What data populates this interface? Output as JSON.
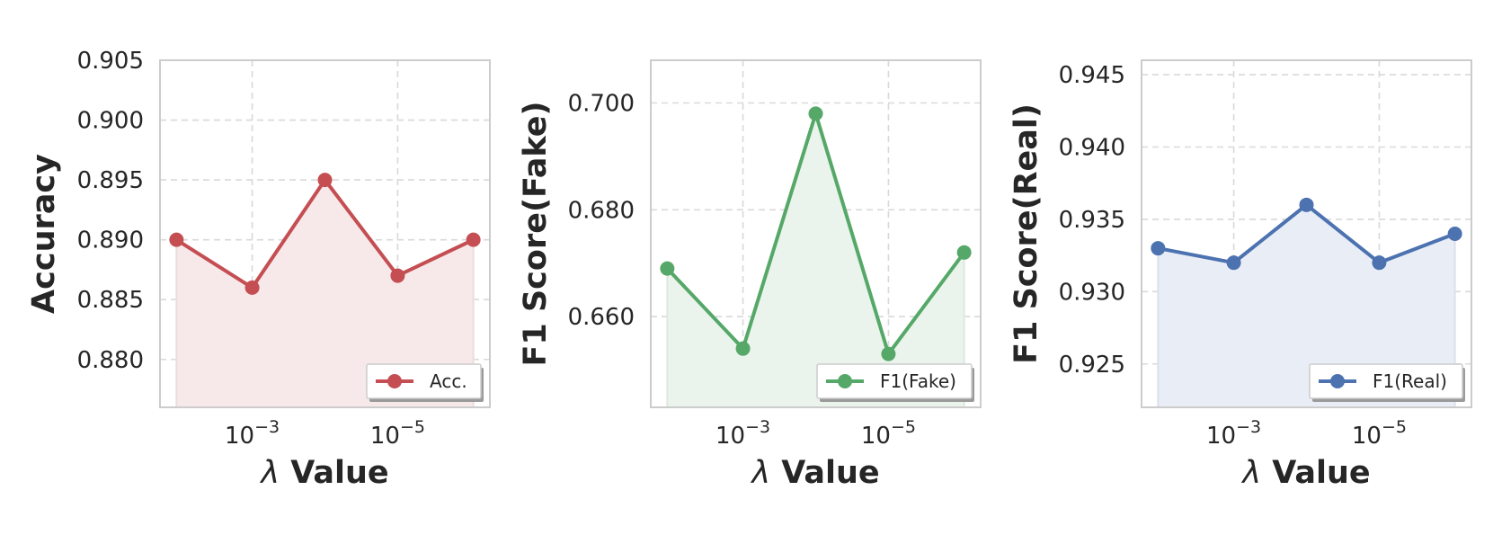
{
  "chart_data": [
    {
      "type": "line",
      "x": [
        "10^-2",
        "10^-3",
        "10^-4",
        "10^-5",
        "10^-6"
      ],
      "xticks": [
        {
          "x": "10^-3",
          "base": "10",
          "exp": "−3"
        },
        {
          "x": "10^-5",
          "base": "10",
          "exp": "−5"
        }
      ],
      "xlabel_symbol": "λ",
      "xlabel_text": "Value",
      "ylabel": "Accuracy",
      "ylim": [
        0.876,
        0.905
      ],
      "yticks": [
        "0.880",
        "0.885",
        "0.890",
        "0.895",
        "0.900",
        "0.905"
      ],
      "grid": true,
      "legend_position": "lower-right",
      "series": [
        {
          "name": "Acc.",
          "color": "#c44e52",
          "fill": "#f7e9ea",
          "values": [
            0.89,
            0.886,
            0.895,
            0.887,
            0.89
          ]
        }
      ]
    },
    {
      "type": "line",
      "x": [
        "10^-2",
        "10^-3",
        "10^-4",
        "10^-5",
        "10^-6"
      ],
      "xticks": [
        {
          "x": "10^-3",
          "base": "10",
          "exp": "−3"
        },
        {
          "x": "10^-5",
          "base": "10",
          "exp": "−5"
        }
      ],
      "xlabel_symbol": "λ",
      "xlabel_text": "Value",
      "ylabel": "F1 Score(Fake)",
      "ylim": [
        0.643,
        0.708
      ],
      "yticks": [
        "0.660",
        "0.680",
        "0.700"
      ],
      "grid": true,
      "legend_position": "lower-right",
      "series": [
        {
          "name": "F1(Fake)",
          "color": "#55a868",
          "fill": "#eaf4ec",
          "values": [
            0.669,
            0.654,
            0.698,
            0.653,
            0.672
          ]
        }
      ]
    },
    {
      "type": "line",
      "x": [
        "10^-2",
        "10^-3",
        "10^-4",
        "10^-5",
        "10^-6"
      ],
      "xticks": [
        {
          "x": "10^-3",
          "base": "10",
          "exp": "−3"
        },
        {
          "x": "10^-5",
          "base": "10",
          "exp": "−5"
        }
      ],
      "xlabel_symbol": "λ",
      "xlabel_text": "Value",
      "ylabel": "F1 Score(Real)",
      "ylim": [
        0.922,
        0.946
      ],
      "yticks": [
        "0.925",
        "0.930",
        "0.935",
        "0.940",
        "0.945"
      ],
      "grid": true,
      "legend_position": "lower-right",
      "series": [
        {
          "name": "F1(Real)",
          "color": "#4c72b0",
          "fill": "#e9edf6",
          "values": [
            0.933,
            0.932,
            0.936,
            0.932,
            0.934
          ]
        }
      ]
    }
  ]
}
